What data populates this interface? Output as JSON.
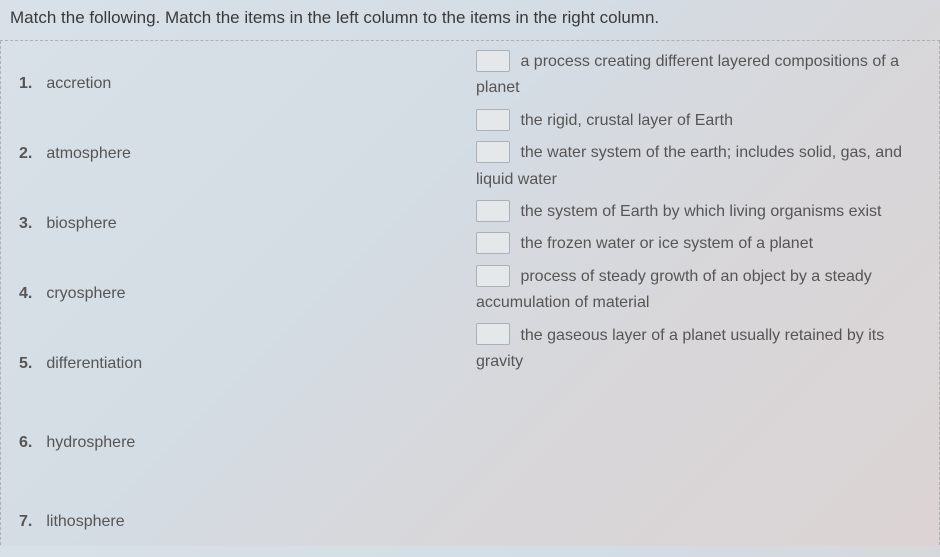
{
  "instruction": "Match the following. Match the items in the left column to the items in the right column.",
  "left": [
    {
      "num": "1.",
      "label": "accretion"
    },
    {
      "num": "2.",
      "label": "atmosphere"
    },
    {
      "num": "3.",
      "label": "biosphere"
    },
    {
      "num": "4.",
      "label": "cryosphere"
    },
    {
      "num": "5.",
      "label": "differentiation"
    },
    {
      "num": "6.",
      "label": "hydrosphere"
    },
    {
      "num": "7.",
      "label": "lithosphere"
    }
  ],
  "right": [
    {
      "text": "a process creating different layered compositions of a planet"
    },
    {
      "text": "the rigid, crustal layer of Earth"
    },
    {
      "text": "the water system of the earth; includes solid, gas, and liquid water"
    },
    {
      "text": "the system of Earth by which living organisms exist"
    },
    {
      "text": "the frozen water or ice system of a planet"
    },
    {
      "text": "process of steady growth of an object by a steady accumulation of material"
    },
    {
      "text": "the gaseous layer of a planet usually retained by its gravity"
    }
  ]
}
